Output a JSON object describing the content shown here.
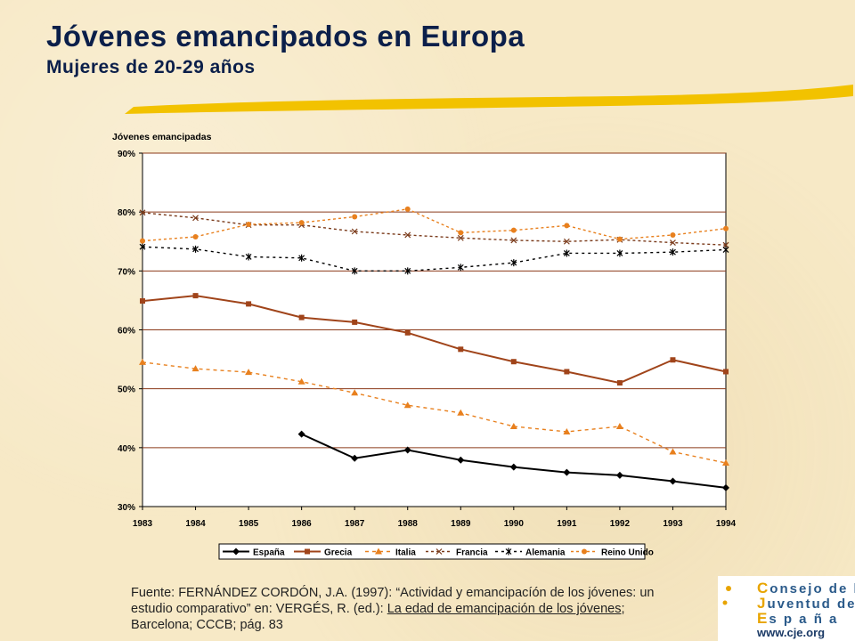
{
  "header": {
    "title": "Jóvenes emancipados en Europa",
    "subtitle": "Mujeres de 20-29 años"
  },
  "source": {
    "part1": "Fuente: FERNÁNDEZ CORDÓN, J.A. (1997): “Actividad y emancipacíón de los jóvenes: un estudio comparativo” en: VERGÉS, R. (ed.): ",
    "book": "La edad de emancipación de los jóvenes",
    "part2": "; Barcelona; CCCB; pág. 83"
  },
  "logo": {
    "line1_cap": "C",
    "line1": "onsejo de la",
    "line2_cap": "J",
    "line2": "uventud de",
    "line3_cap": "E",
    "line3": "s p a ñ a",
    "url": "www.cje.org"
  },
  "colors": {
    "title": "#0b1f4a",
    "espana": "#000000",
    "grecia": "#a0441a",
    "italia": "#e8801e",
    "francia": "#7a3a1a",
    "alemania": "#000000",
    "reino_unido": "#e8801e",
    "plot_bg": "#ffffff",
    "grid": "#8b3a1a"
  },
  "chart_data": {
    "type": "line",
    "title": "",
    "ylabel": "Jóvenes emancipadas",
    "xlabel": "",
    "categories": [
      "1983",
      "1984",
      "1985",
      "1986",
      "1987",
      "1988",
      "1989",
      "1990",
      "1991",
      "1992",
      "1993",
      "1994"
    ],
    "ylim": [
      30,
      90
    ],
    "yticks": [
      30,
      40,
      50,
      60,
      70,
      80,
      90
    ],
    "ytick_labels": [
      "30%",
      "40%",
      "50%",
      "60%",
      "70%",
      "80%",
      "90%"
    ],
    "grid": true,
    "legend_position": "bottom",
    "series": [
      {
        "name": "España",
        "color": "#000000",
        "dash": "",
        "marker": "diamond",
        "values": [
          null,
          null,
          null,
          42.3,
          38.2,
          39.6,
          37.9,
          36.7,
          35.8,
          35.3,
          34.3,
          33.2
        ]
      },
      {
        "name": "Grecia",
        "color": "#a0441a",
        "dash": "",
        "marker": "square",
        "values": [
          64.9,
          65.8,
          64.4,
          62.1,
          61.3,
          59.5,
          56.7,
          54.6,
          52.9,
          51.0,
          54.9,
          52.9
        ]
      },
      {
        "name": "Italia",
        "color": "#e8801e",
        "dash": "4,4",
        "marker": "triangle",
        "values": [
          54.5,
          53.4,
          52.8,
          51.2,
          49.3,
          47.2,
          45.9,
          43.6,
          42.7,
          43.6,
          39.3,
          37.4
        ]
      },
      {
        "name": "Francia",
        "color": "#7a3a1a",
        "dash": "3,3",
        "marker": "x",
        "values": [
          79.9,
          79.0,
          77.8,
          77.8,
          76.7,
          76.1,
          75.6,
          75.2,
          75.0,
          75.3,
          74.8,
          74.4
        ]
      },
      {
        "name": "Alemania",
        "color": "#000000",
        "dash": "3,4",
        "marker": "star",
        "values": [
          74.1,
          73.7,
          72.4,
          72.2,
          70.0,
          70.0,
          70.6,
          71.4,
          73.0,
          73.0,
          73.2,
          73.6
        ]
      },
      {
        "name": "Reino Unido",
        "color": "#e8801e",
        "dash": "3,3",
        "marker": "circle",
        "values": [
          75.1,
          75.8,
          77.9,
          78.2,
          79.2,
          80.5,
          76.5,
          76.9,
          77.7,
          75.4,
          76.1,
          77.2
        ]
      }
    ]
  }
}
